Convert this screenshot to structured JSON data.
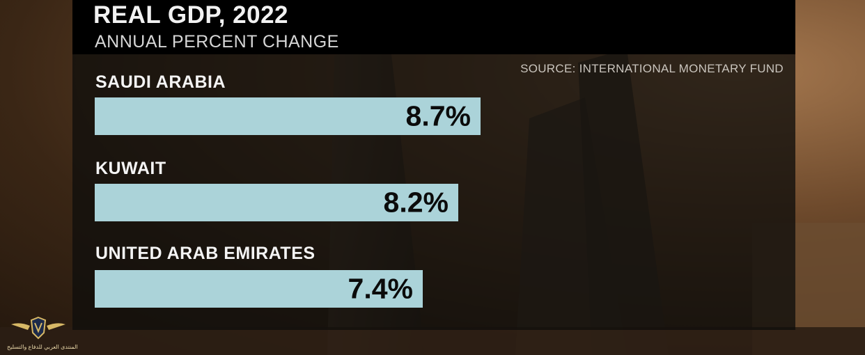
{
  "chart_data": {
    "type": "bar",
    "orientation": "horizontal",
    "title": "REAL GDP, 2022",
    "subtitle": "ANNUAL PERCENT CHANGE",
    "source": "SOURCE: INTERNATIONAL MONETARY FUND",
    "categories": [
      "SAUDI ARABIA",
      "KUWAIT",
      "UNITED ARAB EMIRATES"
    ],
    "values": [
      8.7,
      8.2,
      7.4
    ],
    "value_labels": [
      "8.7%",
      "8.2%",
      "7.4%"
    ],
    "unit": "%",
    "bar_color": "#abd3d9",
    "grid": false,
    "legend": "none"
  },
  "logo": {
    "text": "المنتدى العربي للدفاع والتسليح"
  }
}
